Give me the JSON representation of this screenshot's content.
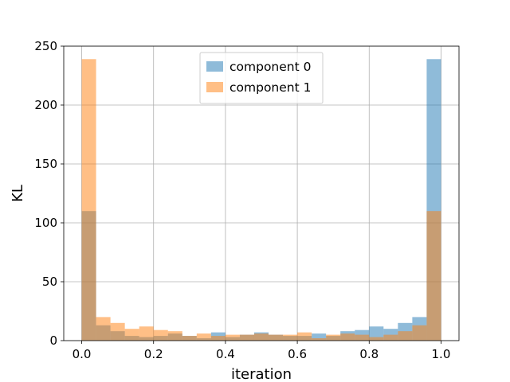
{
  "chart_data": {
    "type": "bar",
    "subtype": "overlapping-histogram",
    "title": "",
    "xlabel": "iteration",
    "ylabel": "KL",
    "xlim": [
      -0.05,
      1.05
    ],
    "ylim": [
      0,
      250
    ],
    "xticks": [
      "0.0",
      "0.2",
      "0.4",
      "0.6",
      "0.8",
      "1.0"
    ],
    "yticks": [
      "0",
      "50",
      "100",
      "150",
      "200",
      "250"
    ],
    "grid": true,
    "legend_position": "top-center",
    "bin_edges": [
      0.0,
      0.04,
      0.08,
      0.12,
      0.16,
      0.2,
      0.24,
      0.28,
      0.32,
      0.36,
      0.4,
      0.44,
      0.48,
      0.52,
      0.56,
      0.6,
      0.64,
      0.68,
      0.72,
      0.76,
      0.8,
      0.84,
      0.88,
      0.92,
      0.96,
      1.0
    ],
    "series": [
      {
        "name": "component 0",
        "color": "#1f77b4",
        "alpha": 0.5,
        "values": [
          110,
          13,
          8,
          4,
          3,
          4,
          6,
          4,
          2,
          7,
          3,
          5,
          7,
          5,
          4,
          4,
          6,
          4,
          8,
          9,
          12,
          10,
          15,
          20,
          239
        ]
      },
      {
        "name": "component 1",
        "color": "#ff7f0e",
        "alpha": 0.5,
        "values": [
          239,
          20,
          15,
          10,
          12,
          9,
          8,
          4,
          6,
          4,
          5,
          5,
          6,
          5,
          5,
          7,
          2,
          5,
          6,
          5,
          3,
          5,
          8,
          13,
          110
        ]
      }
    ]
  }
}
